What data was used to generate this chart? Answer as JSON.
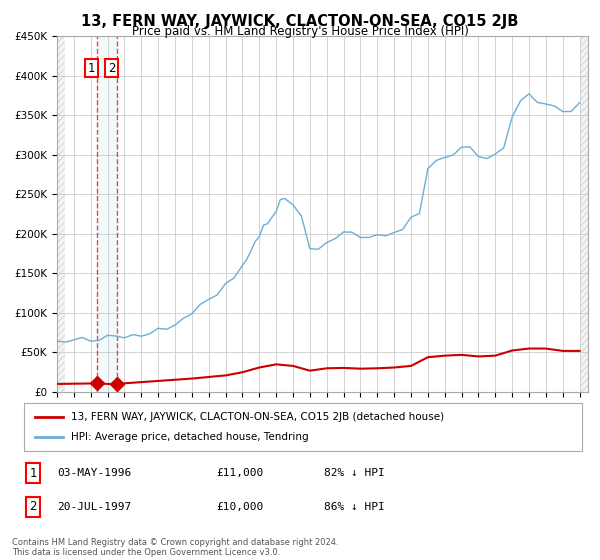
{
  "title": "13, FERN WAY, JAYWICK, CLACTON-ON-SEA, CO15 2JB",
  "subtitle": "Price paid vs. HM Land Registry's House Price Index (HPI)",
  "legend_red": "13, FERN WAY, JAYWICK, CLACTON-ON-SEA, CO15 2JB (detached house)",
  "legend_blue": "HPI: Average price, detached house, Tendring",
  "transaction1_date": "03-MAY-1996",
  "transaction1_price": "£11,000",
  "transaction1_hpi": "82% ↓ HPI",
  "transaction2_date": "20-JUL-1997",
  "transaction2_price": "£10,000",
  "transaction2_hpi": "86% ↓ HPI",
  "footer": "Contains HM Land Registry data © Crown copyright and database right 2024.\nThis data is licensed under the Open Government Licence v3.0.",
  "transaction1_year": 1996.35,
  "transaction2_year": 1997.55,
  "hpi_color": "#6baed6",
  "price_color": "#cc0000",
  "background_color": "#ffffff",
  "ylim": [
    0,
    450000
  ],
  "xlim_start": 1994,
  "xlim_end": 2025.5
}
